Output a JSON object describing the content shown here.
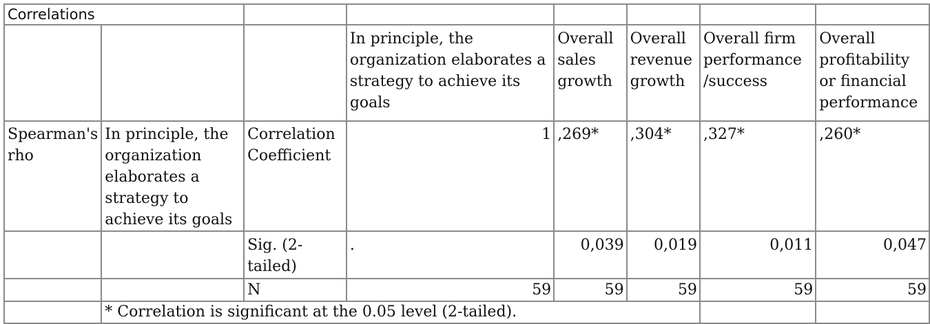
{
  "table": {
    "title": "Correlations",
    "headers": {
      "strategy": "In principle, the organization elaborates a strategy to achieve its goals",
      "sales": "Overall sales growth",
      "revenue": "Overall revenue growth",
      "firm": "Overall firm performance /success",
      "profit": "Overall profitability or financial performance"
    },
    "row_group": "Spearman's rho",
    "row_variable": "In principle, the organization elaborates a strategy to achieve its goals",
    "rows": [
      {
        "stat": "Correlation Coefficient",
        "strategy": "1",
        "sales": ",269*",
        "revenue": ",304*",
        "firm": ",327*",
        "profit": ",260*"
      },
      {
        "stat": "Sig. (2-tailed)",
        "strategy": ".",
        "sales": "0,039",
        "revenue": "0,019",
        "firm": "0,011",
        "profit": "0,047"
      },
      {
        "stat": "N",
        "strategy": "59",
        "sales": "59",
        "revenue": "59",
        "firm": "59",
        "profit": "59"
      }
    ],
    "footnote": "* Correlation is significant at the 0.05 level (2-tailed)."
  }
}
